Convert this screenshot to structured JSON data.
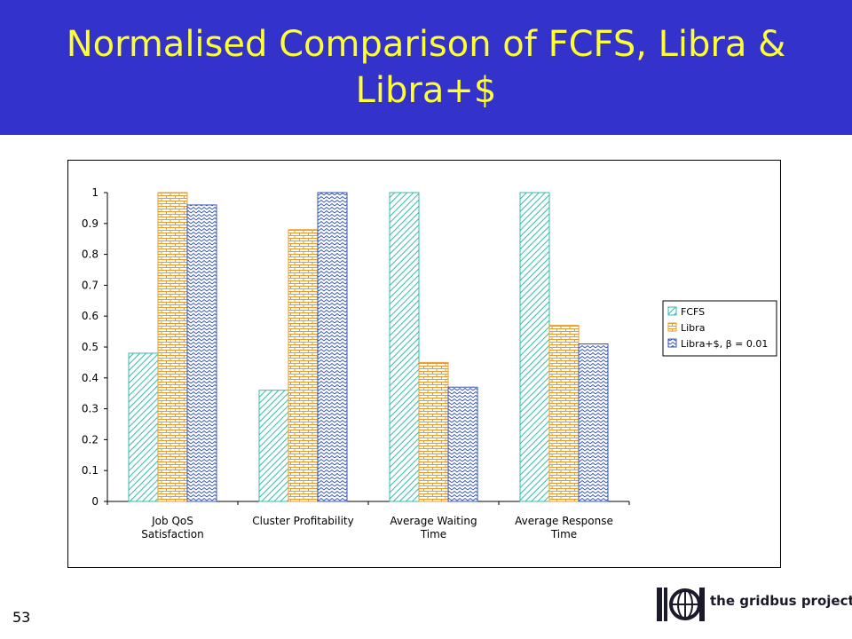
{
  "slide": {
    "title": "Normalised Comparison of FCFS, Libra & Libra+$",
    "number": "53",
    "logo_text": "the gridbus project"
  },
  "colors": {
    "header_bg": "#3333cc",
    "title": "#ffff33",
    "fcfs": "#33bbaa",
    "libra": "#ee9922",
    "libra_plus": "#3355bb"
  },
  "chart_data": {
    "type": "bar",
    "title": "",
    "xlabel": "",
    "ylabel": "",
    "ylim": [
      0,
      1
    ],
    "yticks": [
      "0",
      "0.1",
      "0.2",
      "0.3",
      "0.4",
      "0.5",
      "0.6",
      "0.7",
      "0.8",
      "0.9",
      "1"
    ],
    "categories": [
      [
        "Job QoS",
        "Satisfaction"
      ],
      [
        "Cluster Profitability"
      ],
      [
        "Average Waiting",
        "Time"
      ],
      [
        "Average Response",
        "Time"
      ]
    ],
    "series": [
      {
        "name": "FCFS",
        "values": [
          0.48,
          0.36,
          1.0,
          1.0
        ],
        "pattern": "diagonal",
        "color": "#33bbaa"
      },
      {
        "name": "Libra",
        "values": [
          1.0,
          0.88,
          0.45,
          0.57
        ],
        "pattern": "brick",
        "color": "#ee9922"
      },
      {
        "name": "Libra+$, β = 0.01",
        "values": [
          0.96,
          1.0,
          0.37,
          0.51
        ],
        "pattern": "zigzag",
        "color": "#3355bb"
      }
    ],
    "legend_position": "right",
    "grid": false
  }
}
